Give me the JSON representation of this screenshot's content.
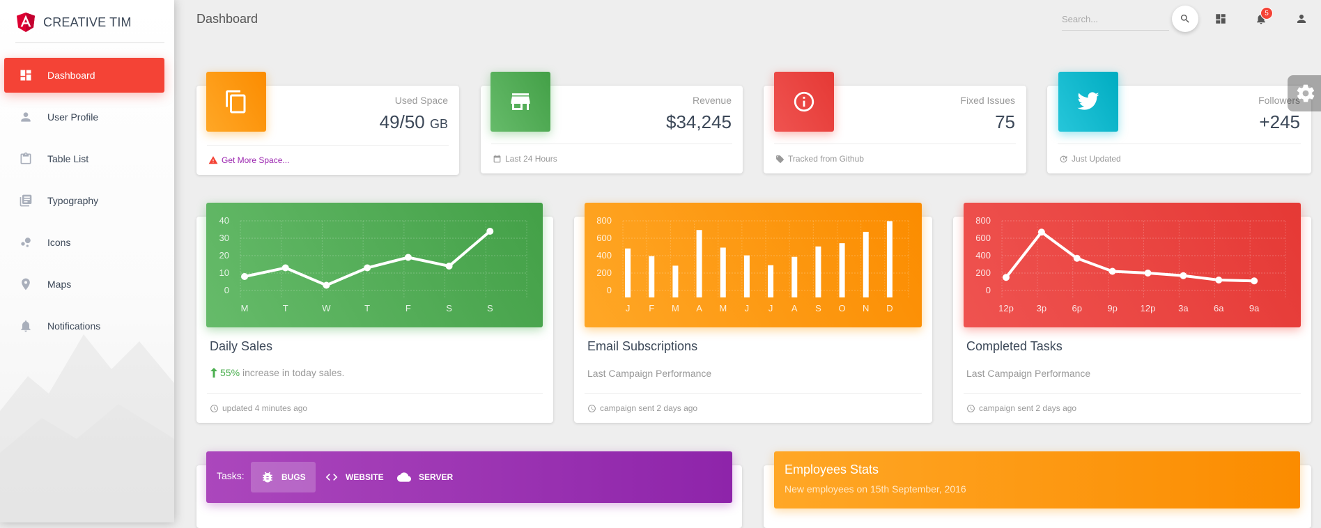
{
  "brand": {
    "name": "CREATIVE TIM"
  },
  "sidebar": {
    "items": [
      {
        "label": "Dashboard",
        "icon": "dashboard-icon",
        "active": true
      },
      {
        "label": "User Profile",
        "icon": "person-icon"
      },
      {
        "label": "Table List",
        "icon": "clipboard-icon"
      },
      {
        "label": "Typography",
        "icon": "library-books-icon"
      },
      {
        "label": "Icons",
        "icon": "bubble-chart-icon"
      },
      {
        "label": "Maps",
        "icon": "location-pin-icon"
      },
      {
        "label": "Notifications",
        "icon": "bell-icon"
      }
    ]
  },
  "topbar": {
    "title": "Dashboard",
    "search_placeholder": "Search...",
    "notification_count": "5"
  },
  "stats": [
    {
      "category": "Used Space",
      "value": "49/50",
      "unit": "GB",
      "footer": "Get More Space...",
      "color": "#ff9800",
      "icon": "copy-icon",
      "footer_icon": "warning-icon"
    },
    {
      "category": "Revenue",
      "value": "$34,245",
      "footer": "Last 24 Hours",
      "color": "#4caf50",
      "icon": "store-icon",
      "footer_icon": "calendar-icon"
    },
    {
      "category": "Fixed Issues",
      "value": "75",
      "footer": "Tracked from Github",
      "color": "#f44336",
      "icon": "info-icon",
      "footer_icon": "tag-icon"
    },
    {
      "category": "Followers",
      "value": "+245",
      "footer": "Just Updated",
      "color": "#00bcd4",
      "icon": "twitter-icon",
      "footer_icon": "update-icon"
    }
  ],
  "charts": [
    {
      "title": "Daily Sales",
      "category_pct": "55%",
      "category_text": "increase in today sales.",
      "footer": "updated 4 minutes ago",
      "color": "#4caf50"
    },
    {
      "title": "Email Subscriptions",
      "category": "Last Campaign Performance",
      "footer": "campaign sent 2 days ago",
      "color": "#ff9800"
    },
    {
      "title": "Completed Tasks",
      "category": "Last Campaign Performance",
      "footer": "campaign sent 2 days ago",
      "color": "#f44336"
    }
  ],
  "tasks": {
    "label": "Tasks:",
    "tabs": [
      {
        "label": "BUGS",
        "icon": "bug-icon",
        "active": true
      },
      {
        "label": "WEBSITE",
        "icon": "code-icon"
      },
      {
        "label": "SERVER",
        "icon": "cloud-icon"
      }
    ]
  },
  "employees": {
    "title": "Employees Stats",
    "subtitle": "New employees on 15th September, 2016"
  },
  "chart_data": [
    {
      "type": "line",
      "categories": [
        "M",
        "T",
        "W",
        "T",
        "F",
        "S",
        "S"
      ],
      "values": [
        12,
        17,
        7,
        17,
        23,
        18,
        38
      ],
      "yticks": [
        0,
        10,
        20,
        30,
        40
      ],
      "ylim": [
        0,
        50
      ],
      "grid": true
    },
    {
      "type": "bar",
      "categories": [
        "J",
        "F",
        "M",
        "A",
        "M",
        "J",
        "J",
        "A",
        "S",
        "O",
        "N",
        "D"
      ],
      "values": [
        542,
        443,
        320,
        780,
        553,
        453,
        326,
        434,
        568,
        610,
        756,
        895
      ],
      "yticks": [
        0,
        200,
        400,
        600,
        800
      ],
      "ylim": [
        0,
        1000
      ],
      "grid": true
    },
    {
      "type": "line",
      "categories": [
        "12p",
        "3p",
        "6p",
        "9p",
        "12p",
        "3a",
        "6a",
        "9a"
      ],
      "values": [
        230,
        750,
        450,
        300,
        280,
        250,
        200,
        190
      ],
      "yticks": [
        0,
        200,
        400,
        600,
        800
      ],
      "ylim": [
        0,
        1000
      ],
      "grid": true
    }
  ]
}
